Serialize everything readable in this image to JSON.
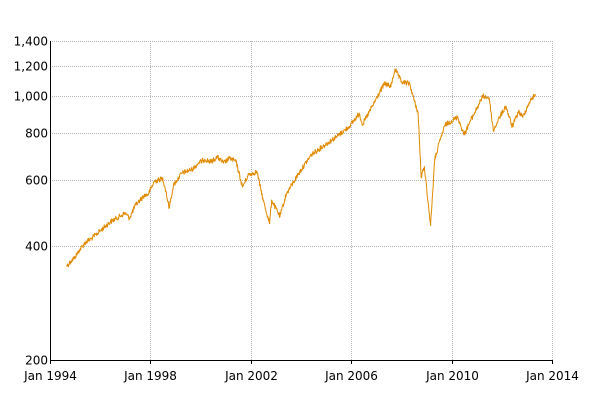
{
  "chart_data": {
    "type": "line",
    "title": "",
    "xlabel": "",
    "ylabel": "",
    "y_scale": "log",
    "xlim": [
      "1994-01-01",
      "2014-01-01"
    ],
    "ylim": [
      200,
      1400
    ],
    "x_ticks": [
      {
        "date": "1994-01-01",
        "label": "Jan 1994"
      },
      {
        "date": "1998-01-01",
        "label": "Jan 1998"
      },
      {
        "date": "2002-01-01",
        "label": "Jan 2002"
      },
      {
        "date": "2006-01-01",
        "label": "Jan 2006"
      },
      {
        "date": "2010-01-01",
        "label": "Jan 2010"
      },
      {
        "date": "2014-01-01",
        "label": "Jan 2014"
      }
    ],
    "y_ticks": [
      {
        "value": 200,
        "label": "200"
      },
      {
        "value": 400,
        "label": "400"
      },
      {
        "value": 600,
        "label": "600"
      },
      {
        "value": 800,
        "label": "800"
      },
      {
        "value": 1000,
        "label": "1,000"
      },
      {
        "value": 1200,
        "label": "1,200"
      },
      {
        "value": 1400,
        "label": "1,400"
      }
    ],
    "grid": true,
    "legend": "none",
    "series": [
      {
        "color": "#e08a00",
        "points": [
          [
            "1994-09-01",
            355
          ],
          [
            "1994-11-01",
            365
          ],
          [
            "1995-01-01",
            375
          ],
          [
            "1995-03-01",
            390
          ],
          [
            "1995-06-01",
            410
          ],
          [
            "1995-09-01",
            420
          ],
          [
            "1996-01-01",
            440
          ],
          [
            "1996-06-01",
            465
          ],
          [
            "1997-01-01",
            490
          ],
          [
            "1997-03-01",
            475
          ],
          [
            "1997-06-01",
            515
          ],
          [
            "1997-08-01",
            530
          ],
          [
            "1997-10-01",
            545
          ],
          [
            "1997-12-01",
            550
          ],
          [
            "1998-03-01",
            595
          ],
          [
            "1998-07-01",
            605
          ],
          [
            "1998-08-15",
            560
          ],
          [
            "1998-10-01",
            505
          ],
          [
            "1998-12-01",
            580
          ],
          [
            "1999-04-01",
            625
          ],
          [
            "1999-09-01",
            640
          ],
          [
            "1999-12-01",
            665
          ],
          [
            "2000-03-01",
            680
          ],
          [
            "2000-06-01",
            670
          ],
          [
            "2000-09-01",
            690
          ],
          [
            "2000-12-01",
            665
          ],
          [
            "2001-03-01",
            685
          ],
          [
            "2001-06-01",
            670
          ],
          [
            "2001-09-01",
            575
          ],
          [
            "2001-12-01",
            620
          ],
          [
            "2002-04-01",
            630
          ],
          [
            "2002-07-01",
            530
          ],
          [
            "2002-10-01",
            460
          ],
          [
            "2002-11-01",
            530
          ],
          [
            "2003-03-01",
            480
          ],
          [
            "2003-06-01",
            550
          ],
          [
            "2003-12-01",
            625
          ],
          [
            "2004-06-01",
            700
          ],
          [
            "2004-12-01",
            740
          ],
          [
            "2005-06-01",
            780
          ],
          [
            "2005-12-01",
            830
          ],
          [
            "2006-05-01",
            900
          ],
          [
            "2006-06-15",
            840
          ],
          [
            "2006-12-01",
            960
          ],
          [
            "2007-05-01",
            1080
          ],
          [
            "2007-08-01",
            1060
          ],
          [
            "2007-10-01",
            1180
          ],
          [
            "2008-01-01",
            1090
          ],
          [
            "2008-05-01",
            1080
          ],
          [
            "2008-07-01",
            980
          ],
          [
            "2008-09-01",
            900
          ],
          [
            "2008-10-15",
            610
          ],
          [
            "2008-12-01",
            650
          ],
          [
            "2009-03-01",
            455
          ],
          [
            "2009-05-01",
            680
          ],
          [
            "2009-08-01",
            780
          ],
          [
            "2009-10-01",
            840
          ],
          [
            "2010-01-01",
            860
          ],
          [
            "2010-04-01",
            880
          ],
          [
            "2010-07-01",
            790
          ],
          [
            "2010-10-01",
            860
          ],
          [
            "2011-02-01",
            950
          ],
          [
            "2011-04-01",
            1000
          ],
          [
            "2011-07-01",
            990
          ],
          [
            "2011-09-01",
            810
          ],
          [
            "2011-12-01",
            880
          ],
          [
            "2012-03-01",
            940
          ],
          [
            "2012-06-01",
            830
          ],
          [
            "2012-09-01",
            910
          ],
          [
            "2012-11-01",
            880
          ],
          [
            "2013-02-01",
            960
          ],
          [
            "2013-05-01",
            1010
          ]
        ]
      }
    ]
  }
}
